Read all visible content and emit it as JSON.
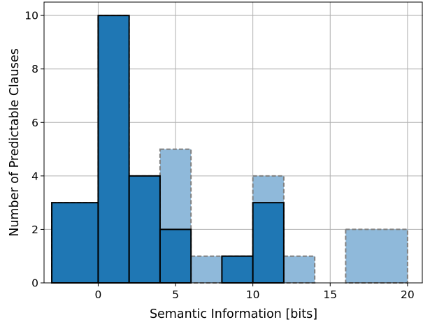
{
  "chart_data": {
    "type": "bar",
    "title": "",
    "xlabel": "Semantic Information [bits]",
    "ylabel": "Number of Predictable Clauses",
    "xlim": [
      -3.5,
      21
    ],
    "ylim": [
      0,
      10.5
    ],
    "xticks": [
      0,
      5,
      10,
      15,
      20
    ],
    "yticks": [
      0,
      2,
      4,
      6,
      8,
      10
    ],
    "grid": true,
    "series": [
      {
        "style": "translucent-dashed",
        "color": "#8FB9DA",
        "edge_color": "#808080",
        "bins": [
          {
            "x0": -3,
            "x1": 0,
            "value": 3
          },
          {
            "x0": 0,
            "x1": 2,
            "value": 10
          },
          {
            "x0": 2,
            "x1": 4,
            "value": 4
          },
          {
            "x0": 4,
            "x1": 6,
            "value": 5
          },
          {
            "x0": 6,
            "x1": 8,
            "value": 1
          },
          {
            "x0": 8,
            "x1": 10,
            "value": 1
          },
          {
            "x0": 10,
            "x1": 12,
            "value": 4
          },
          {
            "x0": 12,
            "x1": 14,
            "value": 1
          },
          {
            "x0": 16,
            "x1": 20,
            "value": 2
          }
        ]
      },
      {
        "style": "solid",
        "color": "#1F77B4",
        "edge_color": "#000000",
        "bins": [
          {
            "x0": -3,
            "x1": 0,
            "value": 3
          },
          {
            "x0": 0,
            "x1": 2,
            "value": 10
          },
          {
            "x0": 2,
            "x1": 4,
            "value": 4
          },
          {
            "x0": 4,
            "x1": 6,
            "value": 2
          },
          {
            "x0": 8,
            "x1": 10,
            "value": 1
          },
          {
            "x0": 10,
            "x1": 12,
            "value": 3
          }
        ]
      }
    ]
  }
}
